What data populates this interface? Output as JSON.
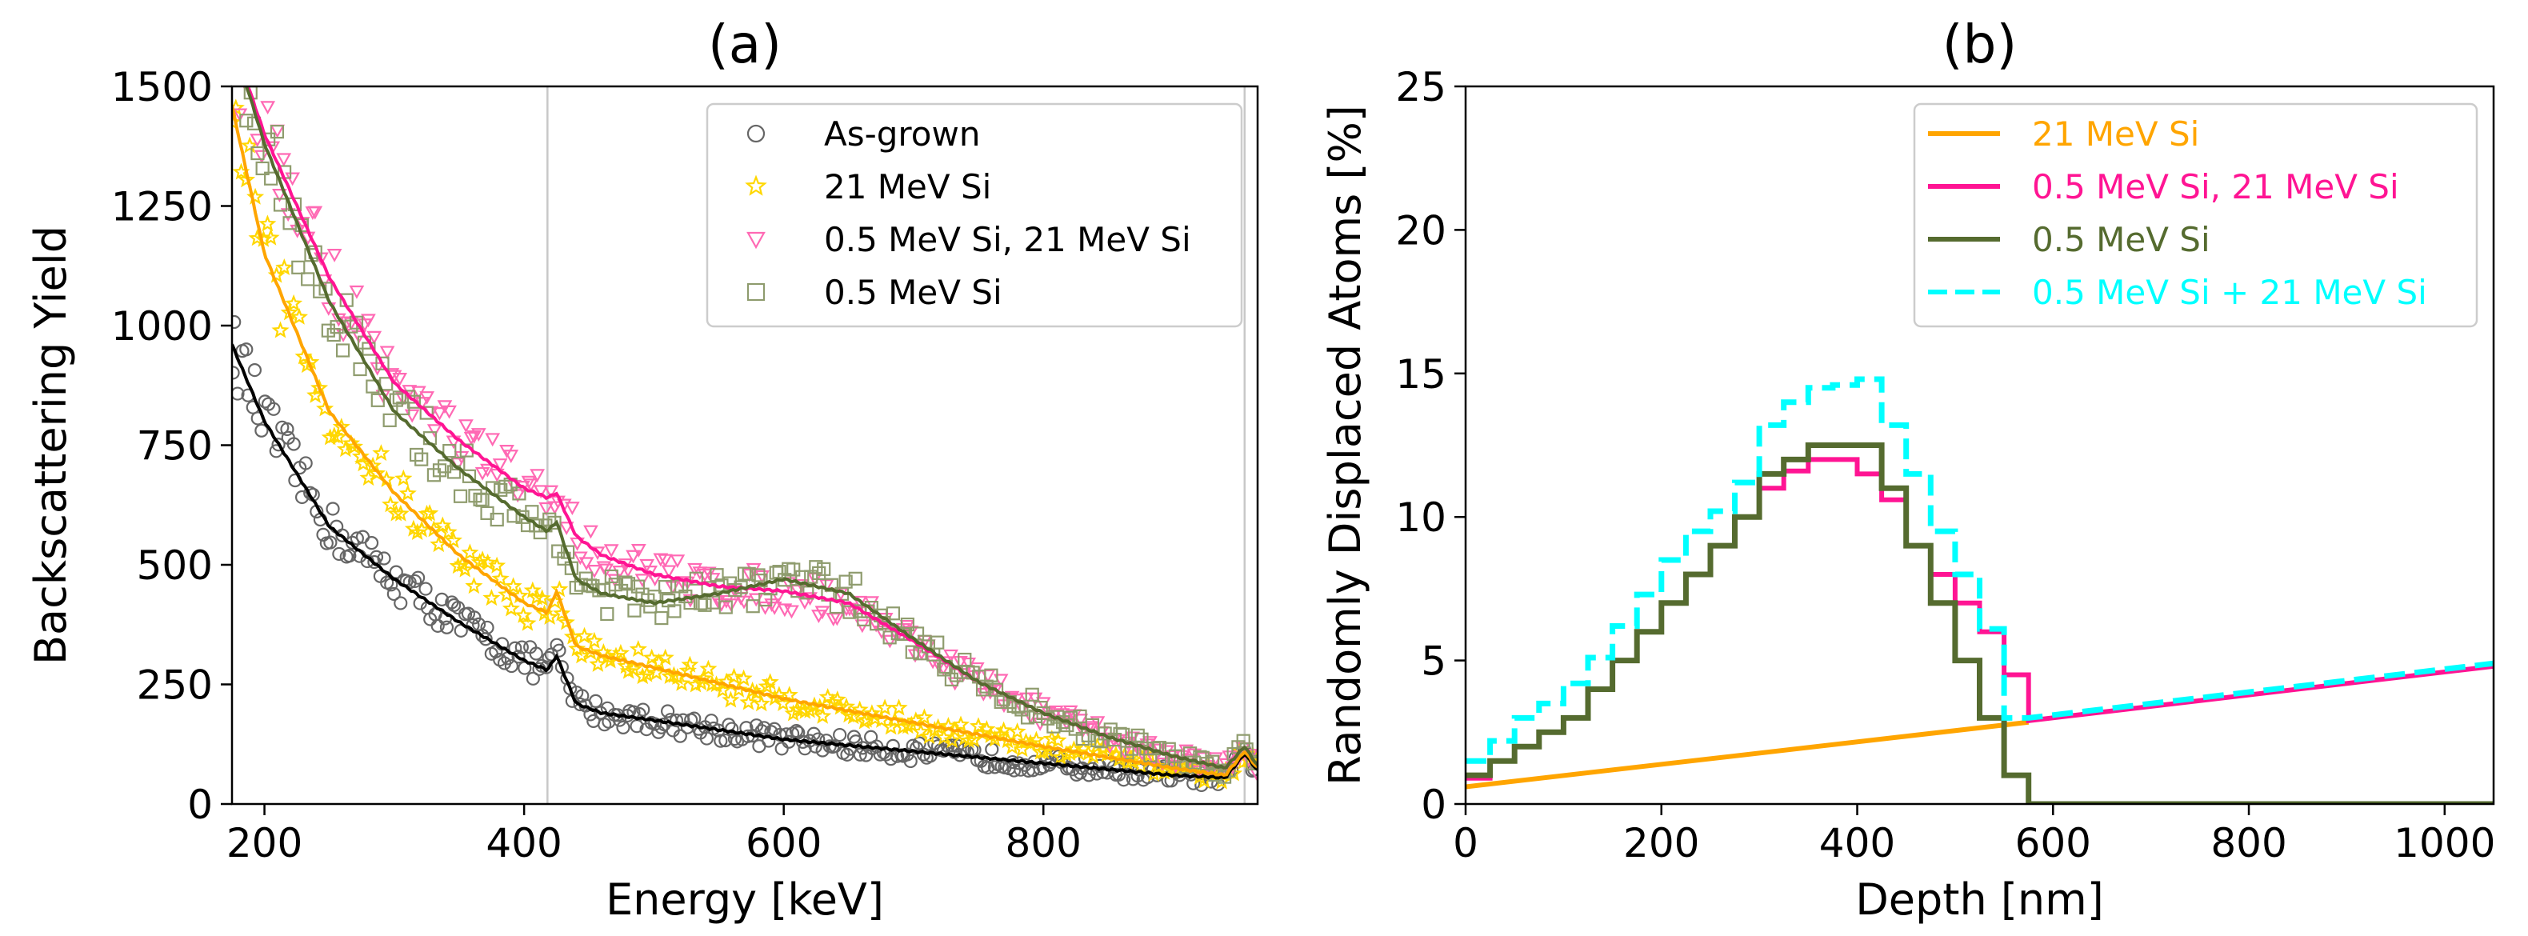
{
  "chart_data": [
    {
      "panel": "a",
      "type": "scatter",
      "title": "(a)",
      "xlabel": "Energy [keV]",
      "ylabel": "Backscattering Yield",
      "xlim": [
        175,
        965
      ],
      "ylim": [
        0,
        1500
      ],
      "xticks": [
        200,
        400,
        600,
        800
      ],
      "yticks": [
        0,
        250,
        500,
        750,
        1000,
        1250,
        1500
      ],
      "grid": false,
      "reference_lines_x": [
        418,
        955
      ],
      "legend": {
        "placement": "top-right",
        "entries": [
          "As-grown",
          "21 MeV Si",
          "0.5 MeV Si, 21 MeV Si",
          "0.5 MeV Si"
        ]
      },
      "series": [
        {
          "name": "As-grown",
          "color": "#666666",
          "line_color": "#000000",
          "marker": "circle",
          "x": [
            175,
            200,
            250,
            300,
            350,
            400,
            418,
            425,
            440,
            460,
            500,
            600,
            700,
            800,
            900,
            940,
            955,
            965
          ],
          "y": [
            960,
            800,
            580,
            470,
            380,
            300,
            280,
            310,
            210,
            190,
            175,
            135,
            110,
            85,
            60,
            55,
            105,
            70
          ]
        },
        {
          "name": "21 MeV Si",
          "color": "#ffd700",
          "line_color": "#ffa500",
          "marker": "star",
          "x": [
            175,
            200,
            250,
            300,
            350,
            400,
            418,
            425,
            440,
            460,
            500,
            600,
            700,
            800,
            900,
            940,
            955,
            965
          ],
          "y": [
            1460,
            1150,
            820,
            650,
            520,
            420,
            400,
            445,
            330,
            310,
            285,
            220,
            170,
            120,
            75,
            60,
            110,
            75
          ]
        },
        {
          "name": "0.5 MeV Si, 21 MeV Si",
          "color": "#ff69b4",
          "line_color": "#ff1493",
          "marker": "triangle-down",
          "x": [
            175,
            200,
            250,
            300,
            350,
            400,
            418,
            425,
            440,
            460,
            500,
            550,
            600,
            650,
            700,
            750,
            800,
            850,
            900,
            940,
            955,
            965
          ],
          "y": [
            1600,
            1400,
            1100,
            880,
            760,
            660,
            640,
            650,
            560,
            520,
            480,
            455,
            445,
            420,
            340,
            255,
            190,
            140,
            100,
            75,
            120,
            80
          ]
        },
        {
          "name": "0.5 MeV Si",
          "color": "#8f9c6e",
          "line_color": "#556b2f",
          "marker": "square",
          "x": [
            175,
            200,
            250,
            300,
            350,
            400,
            418,
            425,
            440,
            460,
            500,
            550,
            600,
            650,
            700,
            750,
            800,
            850,
            900,
            940,
            955,
            965
          ],
          "y": [
            1600,
            1380,
            1050,
            820,
            700,
            600,
            570,
            590,
            470,
            440,
            420,
            440,
            470,
            440,
            345,
            255,
            190,
            140,
            100,
            75,
            120,
            80
          ]
        }
      ]
    },
    {
      "panel": "b",
      "type": "line",
      "title": "(b)",
      "xlabel": "Depth [nm]",
      "ylabel": "Randomly Displaced Atoms [%]",
      "xlim": [
        0,
        1050
      ],
      "ylim": [
        0,
        25
      ],
      "xticks": [
        0,
        200,
        400,
        600,
        800,
        1000
      ],
      "yticks": [
        0,
        5,
        10,
        15,
        20,
        25
      ],
      "grid": false,
      "legend": {
        "placement": "top-right",
        "entries": [
          "21 MeV Si",
          "0.5 MeV Si, 21 MeV Si",
          "0.5 MeV Si",
          "0.5 MeV Si + 21 MeV Si"
        ]
      },
      "bin_edges": [
        0,
        25,
        50,
        75,
        100,
        125,
        150,
        175,
        200,
        225,
        250,
        275,
        300,
        325,
        350,
        375,
        400,
        425,
        450,
        475,
        500,
        525,
        550,
        575
      ],
      "series": [
        {
          "name": "21 MeV Si",
          "color": "#ffa500",
          "style": "solid",
          "x": [
            0,
            575
          ],
          "y": [
            0.6,
            2.85
          ]
        },
        {
          "name": "0.5 MeV Si, 21 MeV Si",
          "color": "#ff1493",
          "style": "solid",
          "steps": [
            0.9,
            1.5,
            2.0,
            2.5,
            3.0,
            4.0,
            5.0,
            6.0,
            7.0,
            8.0,
            9.0,
            10.0,
            11.0,
            11.6,
            12.0,
            12.0,
            11.5,
            10.6,
            9.0,
            8.0,
            7.0,
            6.0,
            4.5
          ],
          "tail_x": [
            575,
            1050
          ],
          "tail_y": [
            2.9,
            4.8
          ]
        },
        {
          "name": "0.5 MeV Si",
          "color": "#556b2f",
          "style": "solid",
          "steps": [
            1.0,
            1.5,
            2.0,
            2.5,
            3.0,
            4.0,
            5.0,
            6.0,
            7.0,
            8.0,
            9.0,
            10.0,
            11.5,
            12.0,
            12.5,
            12.5,
            12.5,
            11.0,
            9.0,
            7.0,
            5.0,
            3.0,
            1.0
          ],
          "tail_x": [
            575,
            1050
          ],
          "tail_y": [
            0,
            0
          ]
        },
        {
          "name": "0.5 MeV Si + 21 MeV Si",
          "color": "#00ffff",
          "style": "dashed",
          "steps": [
            1.5,
            2.2,
            3.0,
            3.5,
            4.2,
            5.1,
            6.2,
            7.3,
            8.5,
            9.5,
            10.2,
            11.2,
            13.2,
            14.0,
            14.5,
            14.6,
            14.8,
            13.2,
            11.5,
            9.5,
            8.0,
            6.1,
            3.0
          ],
          "tail_x": [
            575,
            1050
          ],
          "tail_y": [
            3.0,
            4.9
          ]
        }
      ]
    }
  ]
}
